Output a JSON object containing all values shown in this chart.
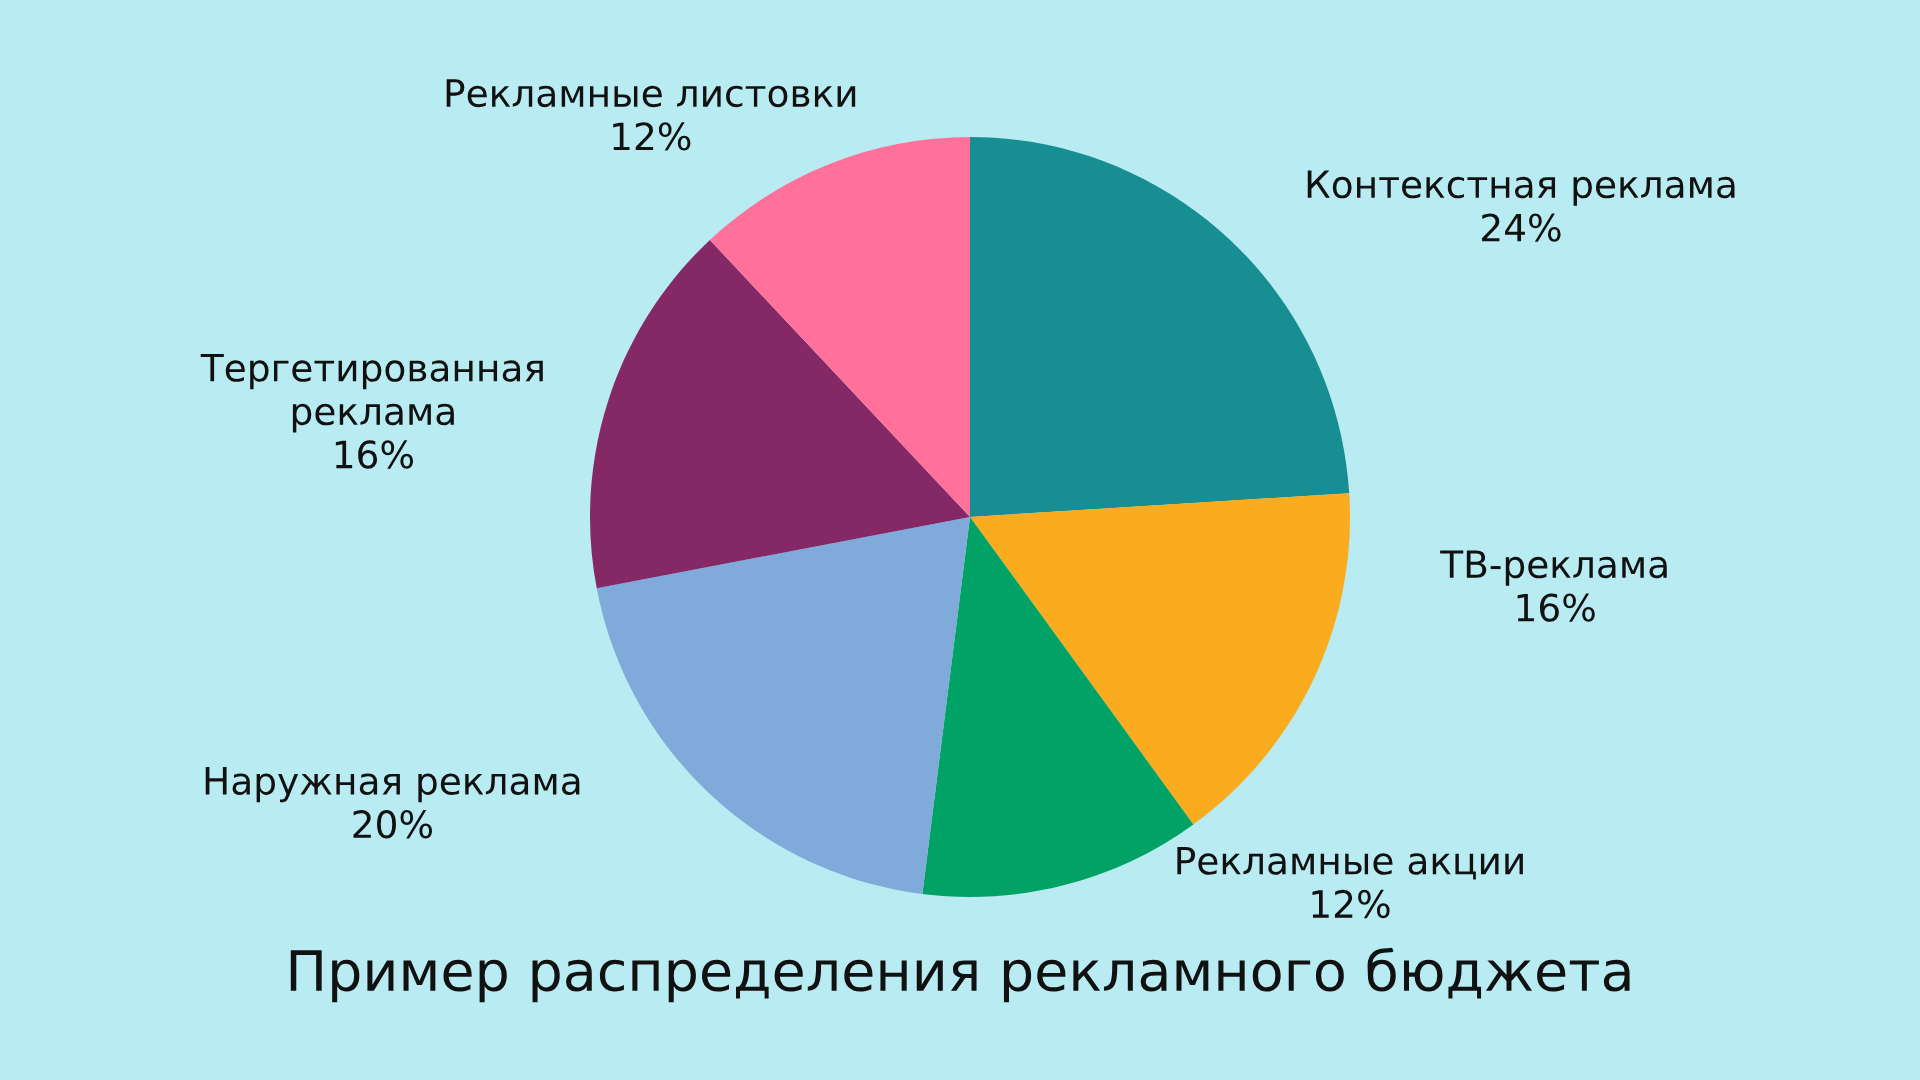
{
  "chart_data": {
    "type": "pie",
    "title": "Пример распределения рекламного бюджета",
    "categories": [
      "Контекстная реклама",
      "ТВ-реклама",
      "Рекламные акции",
      "Наружная реклама",
      "Тергетированная\nреклама",
      "Рекламные листовки"
    ],
    "values": [
      24,
      16,
      12,
      20,
      16,
      12
    ],
    "value_labels": [
      "24%",
      "16%",
      "12%",
      "20%",
      "16%",
      "12%"
    ],
    "colors": [
      "#178e92",
      "#fbab1e",
      "#00a365",
      "#7faad9",
      "#842966",
      "#ff719b"
    ]
  }
}
